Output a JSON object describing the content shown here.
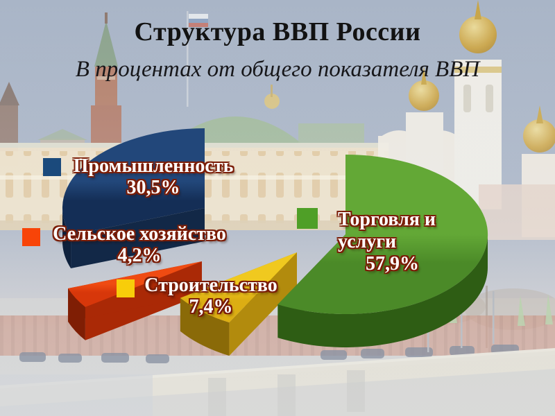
{
  "chart_data": {
    "type": "pie",
    "title": "Структура ВВП России",
    "subtitle": "В процентах от общего показателя ВВП",
    "unit": "%",
    "style": "3d-exploded-pie",
    "background_image": "washed-out winter photo of the Moscow Kremlin and bridge",
    "legend_position": "labels-on-chart",
    "direction": "counterclockwise-from-12",
    "slices": [
      {
        "label": "Промышленность",
        "value": 30.5,
        "display": "30,5%",
        "color_top": "#22477a",
        "color_low": "#142e56",
        "color_side": "#122847",
        "color_rim": "#0d203c",
        "color_legend": "#1b4a7c"
      },
      {
        "label": "Сельское хозяйство",
        "value": 4.2,
        "display": "4,2%",
        "color_top": "#ef4b12",
        "color_low": "#d7370a",
        "color_side": "#aa2906",
        "color_rim": "#7f1e04",
        "color_legend": "#f84408"
      },
      {
        "label": "Строительство",
        "value": 7.4,
        "display": "7,4%",
        "color_top": "#f0c91f",
        "color_low": "#dcae13",
        "color_side": "#b28b0d",
        "color_rim": "#8a6a08",
        "color_legend": "#f8cd0a"
      },
      {
        "label": "Торговля и услуги",
        "value": 57.9,
        "display": "57,9%",
        "color_top": "#63a836",
        "color_low": "#4b8a28",
        "color_side": "#3f7420",
        "color_rim": "#2e5d14",
        "color_legend": "#4f9f27"
      }
    ]
  }
}
